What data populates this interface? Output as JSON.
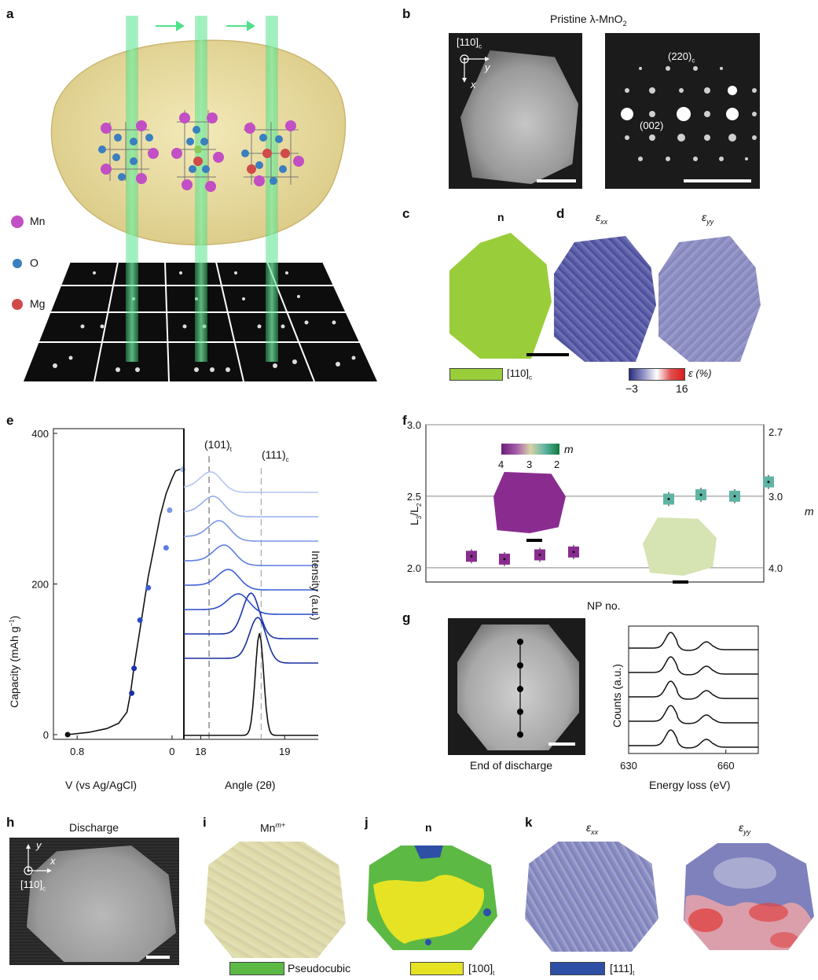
{
  "panel_letters": {
    "a": "a",
    "b": "b",
    "c": "c",
    "d": "d",
    "e": "e",
    "f": "f",
    "g": "g",
    "h": "h",
    "i": "i",
    "j": "j",
    "k": "k"
  },
  "panel_a": {
    "legend": [
      {
        "label": "Mn",
        "color": "#c24fc4"
      },
      {
        "label": "O",
        "color": "#3a7fbf"
      },
      {
        "label": "Mg",
        "color": "#d04a4a"
      }
    ],
    "arrow_color": "#4fe08c"
  },
  "panel_b": {
    "title": "Pristine λ-MnO",
    "title_sub": "2",
    "zone_axis": "[110]",
    "zone_axis_sub": "c",
    "axis_x": "x",
    "axis_y": "y",
    "spot_upper": "(220)",
    "spot_upper_sub": "c",
    "spot_lower": "(002)"
  },
  "panel_c": {
    "title": "n",
    "legend_label": "[110]",
    "legend_sub": "c",
    "color": "#9acd3a"
  },
  "panel_d": {
    "title_xx": "ε",
    "title_xx_sub": "xx",
    "title_yy": "ε",
    "title_yy_sub": "yy",
    "colorbar_min": "−3",
    "colorbar_max": "16",
    "colorbar_label": "ε (%)"
  },
  "panel_e": {
    "ylabel": "Capacity (mAh g",
    "ylabel_sup": "−1",
    "ylabel_end": ")",
    "xlabel_left": "V (vs Ag/AgCl)",
    "xlabel_right": "Angle (2θ)",
    "right_ylabel": "Intensity (a.u.)",
    "peak1": "(101)",
    "peak1_sub": "t",
    "peak2": "(111)",
    "peak2_sub": "c"
  },
  "panel_f": {
    "ylabel": "L",
    "ylabel_sub1": "3",
    "ylabel_mid": "/L",
    "ylabel_sub2": "2",
    "right_ylabel": "m",
    "xlabel": "NP no.",
    "colorbar_label": "m",
    "colorbar_ticks": [
      "4",
      "3",
      "2"
    ]
  },
  "panel_g": {
    "image_caption": "End of discharge",
    "ylabel": "Counts (a.u.)",
    "xlabel": "Energy loss (eV)"
  },
  "panel_h": {
    "title": "Discharge",
    "axis_x": "x",
    "axis_y": "y",
    "zone_axis": "[110]",
    "zone_axis_sub": "c"
  },
  "panel_i": {
    "title": "Mn",
    "title_sup": "m+"
  },
  "panel_j": {
    "title": "n"
  },
  "panel_k": {
    "title_xx": "ε",
    "title_xx_sub": "xx",
    "title_yy": "ε",
    "title_yy_sub": "yy"
  },
  "bottom_legend": [
    {
      "label": "Pseudocubic",
      "color": "#5cb943"
    },
    {
      "label": "[100]",
      "sub": "t",
      "color": "#e6e224"
    },
    {
      "label": "[111]",
      "sub": "t",
      "color": "#2e4fa6"
    }
  ],
  "chart_data": [
    {
      "type": "scatter",
      "id": "e-left",
      "xlabel": "V (vs Ag/AgCl)",
      "ylabel": "Capacity (mAh g−1)",
      "x_ticks": [
        "0.8",
        "0"
      ],
      "y_ticks": [
        "0",
        "200",
        "400"
      ],
      "ylim": [
        0,
        400
      ],
      "xlim_reversed": [
        1.0,
        -0.1
      ],
      "curve_x": [
        0.88,
        0.7,
        0.55,
        0.45,
        0.38,
        0.35,
        0.32,
        0.28,
        0.24,
        0.2,
        0.15,
        0.1,
        0.05,
        0.0,
        -0.03,
        -0.06,
        -0.09
      ],
      "curve_y": [
        0,
        3,
        8,
        15,
        30,
        55,
        90,
        130,
        170,
        210,
        250,
        290,
        320,
        340,
        350,
        352,
        353
      ],
      "points": [
        {
          "x": 0.88,
          "y": 0,
          "color": "#111111"
        },
        {
          "x": 0.34,
          "y": 55,
          "color": "#1a2fa0"
        },
        {
          "x": 0.32,
          "y": 88,
          "color": "#1a33b0"
        },
        {
          "x": 0.27,
          "y": 152,
          "color": "#2a4bc8"
        },
        {
          "x": 0.2,
          "y": 195,
          "color": "#3a5fd6"
        },
        {
          "x": 0.05,
          "y": 248,
          "color": "#5b7de0"
        },
        {
          "x": 0.02,
          "y": 298,
          "color": "#7b96e6"
        },
        {
          "x": -0.09,
          "y": 352,
          "color": "#a8bcf0"
        }
      ]
    },
    {
      "type": "line",
      "id": "e-right",
      "xlabel": "Angle (2θ)",
      "ylabel": "Intensity (a.u.)",
      "x_ticks": [
        "18",
        "19"
      ],
      "series": [
        {
          "peak": 18.7,
          "color": "#111111"
        },
        {
          "peak": 18.68,
          "color": "#1a2fa0"
        },
        {
          "peak": 18.6,
          "color": "#1a33b0"
        },
        {
          "peak": 18.45,
          "color": "#2a4bc8"
        },
        {
          "peak": 18.33,
          "color": "#3a5fd6"
        },
        {
          "peak": 18.28,
          "color": "#5b7de0"
        },
        {
          "peak": 18.22,
          "color": "#7b96e6"
        },
        {
          "peak": 18.15,
          "color": "#98aeee"
        },
        {
          "peak": 18.12,
          "color": "#b6c6f4"
        }
      ]
    },
    {
      "type": "bar",
      "id": "f",
      "xlabel": "NP no.",
      "ylabel": "L3/L2",
      "right_ylabel": "m",
      "y_ticks": [
        "2.0",
        "2.5",
        "3.0"
      ],
      "right_ticks": [
        "4.0",
        "3.0",
        "2.7"
      ],
      "ylim": [
        1.9,
        3.0
      ],
      "boxes": [
        {
          "value": 2.08,
          "color": "#8a2c8f"
        },
        {
          "value": 2.06,
          "color": "#8a2c8f"
        },
        {
          "value": 2.09,
          "color": "#8a2c8f"
        },
        {
          "value": 2.11,
          "color": "#8a2c8f"
        },
        {
          "value": 2.48,
          "color": "#5fb5a3"
        },
        {
          "value": 2.51,
          "color": "#5fb5a3"
        },
        {
          "value": 2.5,
          "color": "#5fb5a3"
        },
        {
          "value": 2.6,
          "color": "#5fb5a3"
        }
      ]
    },
    {
      "type": "line",
      "id": "g",
      "xlabel": "Energy loss (eV)",
      "ylabel": "Counts (a.u.)",
      "x_ticks": [
        "630",
        "660"
      ],
      "series_count": 5
    }
  ]
}
